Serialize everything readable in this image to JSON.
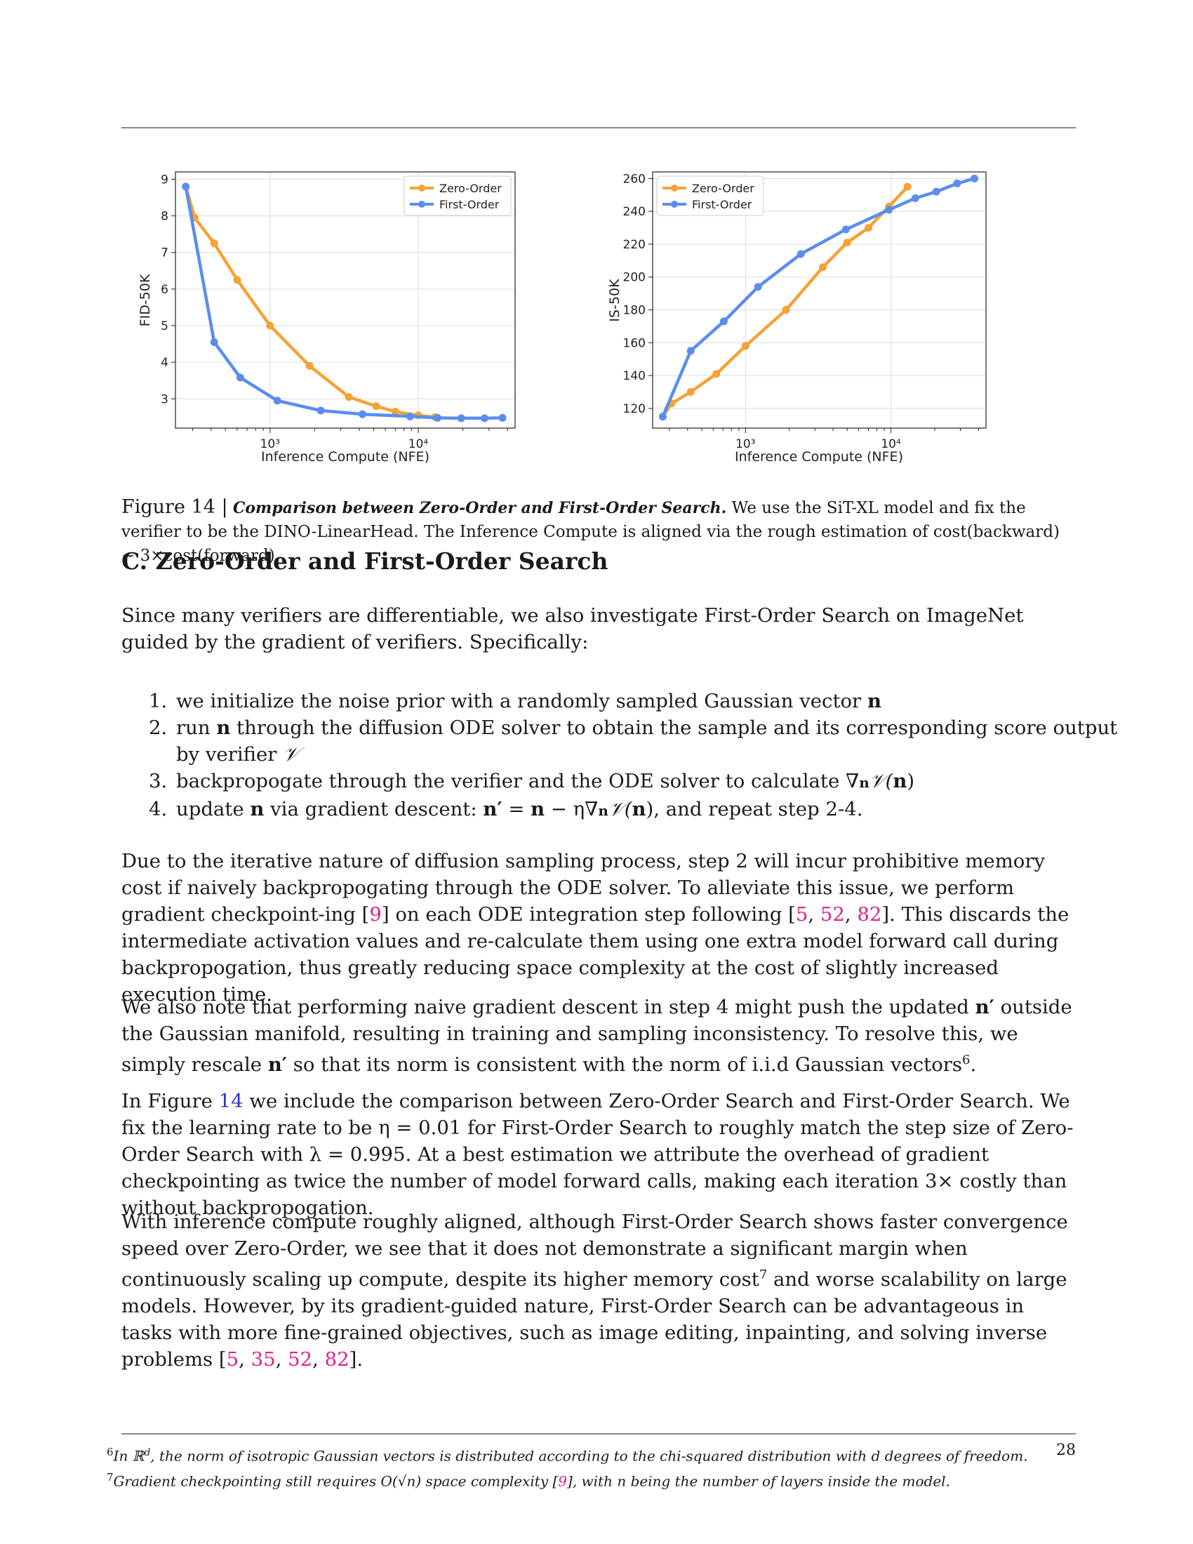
{
  "chart_data": [
    {
      "type": "line",
      "xlabel": "Inference Compute (NFE)",
      "ylabel": "FID-50K",
      "xscale": "log",
      "xlim": [
        230,
        45000
      ],
      "ylim": [
        2.2,
        9.2
      ],
      "yticks": [
        "3",
        "4",
        "5",
        "6",
        "7",
        "8",
        "9"
      ],
      "xticks": [
        "10³",
        "10⁴"
      ],
      "grid": true,
      "legend": "top-right",
      "series": [
        {
          "name": "Zero-Order",
          "color": "#f5a236",
          "x": [
            270,
            310,
            420,
            600,
            1000,
            1850,
            3400,
            5200,
            7000,
            10000,
            13000
          ],
          "y": [
            8.8,
            7.95,
            7.25,
            6.25,
            5.0,
            3.9,
            3.05,
            2.8,
            2.65,
            2.55,
            2.5
          ]
        },
        {
          "name": "First-Order",
          "color": "#5b8def",
          "x": [
            270,
            420,
            630,
            1120,
            2200,
            4200,
            8800,
            13500,
            19500,
            28000,
            37000
          ],
          "y": [
            8.8,
            4.55,
            3.58,
            2.95,
            2.68,
            2.58,
            2.52,
            2.48,
            2.47,
            2.47,
            2.48
          ]
        }
      ]
    },
    {
      "type": "line",
      "xlabel": "Inference Compute (NFE)",
      "ylabel": "IS-50K",
      "xscale": "log",
      "xlim": [
        230,
        45000
      ],
      "ylim": [
        108,
        264
      ],
      "yticks": [
        "120",
        "140",
        "160",
        "180",
        "200",
        "220",
        "240",
        "260"
      ],
      "xticks": [
        "10³",
        "10⁴"
      ],
      "grid": true,
      "legend": "top-left",
      "series": [
        {
          "name": "Zero-Order",
          "color": "#f5a236",
          "x": [
            270,
            310,
            420,
            630,
            1000,
            1900,
            3400,
            5000,
            7000,
            9700,
            13000
          ],
          "y": [
            115,
            123,
            130,
            141,
            158,
            180,
            206,
            221,
            230,
            243,
            255
          ]
        },
        {
          "name": "First-Order",
          "color": "#5b8def",
          "x": [
            270,
            420,
            710,
            1220,
            2400,
            4900,
            9700,
            14700,
            20500,
            28500,
            37500
          ],
          "y": [
            115,
            155,
            173,
            194,
            214,
            229,
            241,
            248,
            252,
            257,
            260
          ]
        }
      ]
    }
  ],
  "figure": {
    "label": "Figure 14 |",
    "bold_title": "Comparison between Zero-Order and First-Order Search.",
    "text_1": " We use the SiT-XL model and fix the verifier to be the DINO-LinearHead. The Inference Compute is aligned via the rough estimation of cost(backward) ~ 3×cost(forward)."
  },
  "section": {
    "title": "C.  Zero-Order and First-Order Search"
  },
  "intro": "Since many verifiers are differentiable, we also investigate First-Order Search on ImageNet guided by the gradient of verifiers. Specifically:",
  "steps": [
    {
      "a": "we initialize the noise prior with a randomly sampled Gaussian vector ",
      "b": "n"
    },
    {
      "a": "run ",
      "b": "n",
      "c": " through the diffusion ODE solver to obtain the sample and its corresponding score output by verifier ",
      "d": "𝒱"
    },
    {
      "a": "backpropogate through the verifier and the ODE solver to calculate ∇",
      "b": "n",
      "c": "𝒱(",
      "d": "n",
      "e": ")"
    },
    {
      "a": "update ",
      "b": "n",
      "c": " via gradient descent: ",
      "d": "n′",
      "e": " = ",
      "f": "n",
      "g": " − η∇",
      "h": "n",
      "i": "𝒱(",
      "j": "n",
      "k": "), and repeat step 2-4."
    }
  ],
  "p1": {
    "a": "Due to the iterative nature of diffusion sampling process, step 2 will incur prohibitive memory cost if naively backpropogating through the ODE solver. To alleviate this issue, we perform gradient checkpoint-ing [",
    "c1": "9",
    "b": "] on each ODE integration step following [",
    "c2": "5",
    "c3": "52",
    "c4": "82",
    "d": "]. This discards the intermediate activation values and re-calculate them using one extra model forward call during backpropogation, thus greatly reducing space complexity at the cost of slightly increased execution time."
  },
  "p2": {
    "a": "We also note that performing naive gradient descent in step 4 might push the updated ",
    "n1": "n′",
    "b": " outside the Gaussian manifold, resulting in training and sampling inconsistency. To resolve this, we simply rescale ",
    "n2": "n′",
    "c": " so that its norm is consistent with the norm of i.i.d Gaussian vectors",
    "sup": "6",
    "d": "."
  },
  "p3": {
    "a": "In Figure ",
    "ref": "14",
    "b": " we include the comparison between Zero-Order Search and First-Order Search. We fix the learning rate to be η = 0.01 for First-Order Search to roughly match the step size of Zero-Order Search with λ = 0.995. At a best estimation we attribute the overhead of gradient checkpointing as twice the number of model forward calls, making each iteration 3× costly than without backpropogation."
  },
  "p4": {
    "a": "With inference compute roughly aligned, although First-Order Search shows faster convergence speed over Zero-Order, we see that it does not demonstrate a significant margin when continuously scaling up compute, despite its higher memory cost",
    "sup": "7",
    "b": " and worse scalability on large models. However, by its gradient-guided nature, First-Order Search can be advantageous in tasks with more fine-grained objectives, such as image editing, inpainting, and solving inverse problems [",
    "c1": "5",
    "c2": "35",
    "c3": "52",
    "c4": "82",
    "d": "]."
  },
  "footnotes": {
    "f6_mark": "6",
    "f6": "In ℝ",
    "f6_sup": "d",
    "f6_rest": ", the norm of isotropic Gaussian vectors is distributed according to the chi-squared distribution with d degrees of freedom.",
    "f7_mark": "7",
    "f7_a": "Gradient checkpointing still requires O(√n) space complexity [",
    "f7_cite": "9",
    "f7_b": "], with n being the number of layers inside the model."
  },
  "page_number": "28"
}
